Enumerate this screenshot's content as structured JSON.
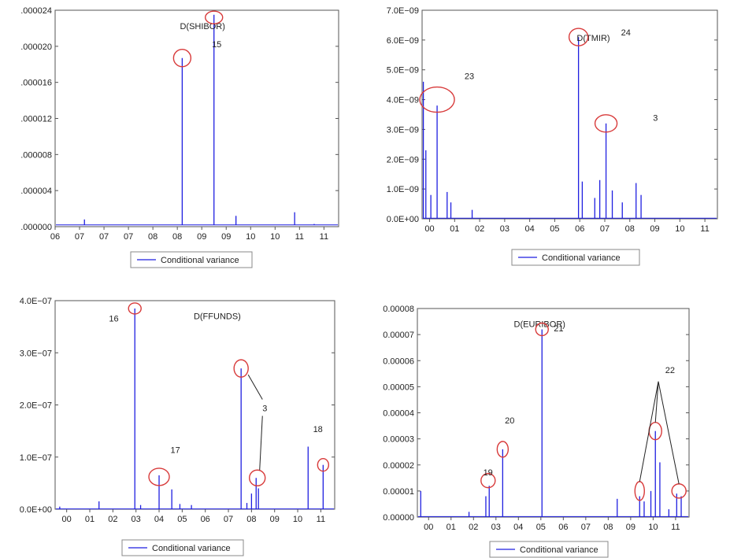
{
  "chart_data": [
    {
      "type": "line",
      "title": "D(SHIBOR)",
      "ylim": [
        0,
        2.4e-05
      ],
      "y_ticks": [
        ".000000",
        ".000004",
        ".000008",
        ".000012",
        ".000016",
        ".000020",
        ".000024"
      ],
      "y_tick_values": [
        0,
        4e-06,
        8e-06,
        1.2e-05,
        1.6e-05,
        2e-05,
        2.4e-05
      ],
      "x_range": [
        2006.0,
        2011.8
      ],
      "x_ticks": [
        "06",
        "07",
        "07",
        "07",
        "08",
        "08",
        "09",
        "09",
        "10",
        "10",
        "11",
        "11"
      ],
      "x_tick_positions": [
        2006.0,
        2006.5,
        2007.0,
        2007.5,
        2008.0,
        2008.5,
        2009.0,
        2009.5,
        2010.0,
        2010.5,
        2011.0,
        2011.5
      ],
      "baseline": 2e-07,
      "series": [
        {
          "name": "Conditional variance",
          "spikes": [
            {
              "x": 2006.6,
              "y": 8e-07
            },
            {
              "x": 2008.6,
              "y": 1.87e-05
            },
            {
              "x": 2009.25,
              "y": 2.35e-05
            },
            {
              "x": 2009.7,
              "y": 1.2e-06
            },
            {
              "x": 2010.9,
              "y": 1.6e-06
            },
            {
              "x": 2011.3,
              "y": 3e-07
            }
          ]
        }
      ],
      "annotations": [
        {
          "label": "15",
          "x": 2008.6,
          "y": 1.87e-05
        },
        {
          "label": "",
          "x": 2009.25,
          "y": 2.35e-05
        }
      ],
      "legend_entries": [
        "Conditional variance"
      ]
    },
    {
      "type": "line",
      "title": "D(TMIR)",
      "ylim": [
        0,
        7e-09
      ],
      "y_ticks": [
        "0.0E+00",
        "1.0E−09",
        "2.0E−09",
        "3.0E−09",
        "4.0E−09",
        "5.0E−09",
        "6.0E−09",
        "7.0E−09"
      ],
      "y_tick_values": [
        0,
        1e-09,
        2e-09,
        3e-09,
        4e-09,
        5e-09,
        6e-09,
        7e-09
      ],
      "x_range": [
        1999.7,
        2011.5
      ],
      "x_ticks": [
        "00",
        "01",
        "02",
        "03",
        "04",
        "05",
        "06",
        "07",
        "08",
        "09",
        "10",
        "11"
      ],
      "x_tick_positions": [
        2000,
        2001,
        2002,
        2003,
        2004,
        2005,
        2006,
        2007,
        2008,
        2009,
        2010,
        2011
      ],
      "baseline": 2e-11,
      "series": [
        {
          "name": "Conditional variance",
          "spikes": [
            {
              "x": 1999.75,
              "y": 4.6e-09
            },
            {
              "x": 1999.85,
              "y": 2.3e-09
            },
            {
              "x": 2000.05,
              "y": 8e-10
            },
            {
              "x": 2000.3,
              "y": 3.8e-09
            },
            {
              "x": 2000.7,
              "y": 9e-10
            },
            {
              "x": 2000.85,
              "y": 5.5e-10
            },
            {
              "x": 2001.7,
              "y": 3e-10
            },
            {
              "x": 2005.95,
              "y": 6.1e-09
            },
            {
              "x": 2006.1,
              "y": 1.25e-09
            },
            {
              "x": 2006.6,
              "y": 7e-10
            },
            {
              "x": 2006.8,
              "y": 1.3e-09
            },
            {
              "x": 2007.05,
              "y": 3.2e-09
            },
            {
              "x": 2007.3,
              "y": 9.5e-10
            },
            {
              "x": 2007.7,
              "y": 5.5e-10
            },
            {
              "x": 2008.25,
              "y": 1.2e-09
            },
            {
              "x": 2008.45,
              "y": 8e-10
            }
          ]
        }
      ],
      "annotations": [
        {
          "label": "24",
          "x": 2005.95,
          "y": 6.1e-09
        },
        {
          "label": "23",
          "x": 2000.3,
          "y": 4e-09
        },
        {
          "label": "3",
          "x": 2007.05,
          "y": 3.2e-09
        }
      ],
      "legend_entries": [
        "Conditional variance"
      ]
    },
    {
      "type": "line",
      "title": "D(FFUNDS)",
      "ylim": [
        0,
        4e-07
      ],
      "y_ticks": [
        "0.0E+00",
        "1.0E−07",
        "2.0E−07",
        "3.0E−07",
        "4.0E−07"
      ],
      "y_tick_values": [
        0,
        1e-07,
        2e-07,
        3e-07,
        4e-07
      ],
      "x_range": [
        1999.5,
        2011.6
      ],
      "x_ticks": [
        "00",
        "01",
        "02",
        "03",
        "04",
        "05",
        "06",
        "07",
        "08",
        "09",
        "10",
        "11"
      ],
      "x_tick_positions": [
        2000,
        2001,
        2002,
        2003,
        2004,
        2005,
        2006,
        2007,
        2008,
        2009,
        2010,
        2011
      ],
      "baseline": 5e-10,
      "series": [
        {
          "name": "Conditional variance",
          "spikes": [
            {
              "x": 1999.7,
              "y": 5e-09
            },
            {
              "x": 2001.4,
              "y": 1.5e-08
            },
            {
              "x": 2002.95,
              "y": 3.85e-07
            },
            {
              "x": 2003.2,
              "y": 8e-09
            },
            {
              "x": 2004.0,
              "y": 6.5e-08
            },
            {
              "x": 2004.55,
              "y": 3.8e-08
            },
            {
              "x": 2004.9,
              "y": 1e-08
            },
            {
              "x": 2005.4,
              "y": 8e-09
            },
            {
              "x": 2007.55,
              "y": 2.7e-07
            },
            {
              "x": 2007.8,
              "y": 1.2e-08
            },
            {
              "x": 2008.0,
              "y": 3e-08
            },
            {
              "x": 2008.2,
              "y": 6e-08
            },
            {
              "x": 2008.3,
              "y": 4e-08
            },
            {
              "x": 2010.45,
              "y": 1.2e-07
            },
            {
              "x": 2011.1,
              "y": 8.5e-08
            }
          ]
        }
      ],
      "annotations": [
        {
          "label": "16",
          "x": 2002.95,
          "y": 3.85e-07
        },
        {
          "label": "17",
          "x": 2004.0,
          "y": 6.5e-08
        },
        {
          "label": "3",
          "x": 2007.55,
          "y": 2.7e-07
        },
        {
          "label": "18",
          "x": 2011.1,
          "y": 8.5e-08
        }
      ],
      "legend_entries": [
        "Conditional variance"
      ]
    },
    {
      "type": "line",
      "title": "D(EURIBOR)",
      "ylim": [
        0,
        8e-05
      ],
      "y_ticks": [
        "0.00000",
        "0.00001",
        "0.00002",
        "0.00003",
        "0.00004",
        "0.00005",
        "0.00006",
        "0.00007",
        "0.00008"
      ],
      "y_tick_values": [
        0,
        1e-05,
        2e-05,
        3e-05,
        4e-05,
        5e-05,
        6e-05,
        7e-05,
        8e-05
      ],
      "x_range": [
        1999.5,
        2011.6
      ],
      "x_ticks": [
        "00",
        "01",
        "02",
        "03",
        "04",
        "05",
        "06",
        "07",
        "08",
        "09",
        "10",
        "11"
      ],
      "x_tick_positions": [
        2000,
        2001,
        2002,
        2003,
        2004,
        2005,
        2006,
        2007,
        2008,
        2009,
        2010,
        2011
      ],
      "baseline": 2e-07,
      "series": [
        {
          "name": "Conditional variance",
          "spikes": [
            {
              "x": 1999.65,
              "y": 1e-05
            },
            {
              "x": 2001.8,
              "y": 2e-06
            },
            {
              "x": 2002.55,
              "y": 8e-06
            },
            {
              "x": 2002.7,
              "y": 1.2e-05
            },
            {
              "x": 2003.3,
              "y": 2.6e-05
            },
            {
              "x": 2005.05,
              "y": 7.2e-05
            },
            {
              "x": 2008.4,
              "y": 7e-06
            },
            {
              "x": 2009.4,
              "y": 8e-06
            },
            {
              "x": 2009.6,
              "y": 6e-06
            },
            {
              "x": 2009.9,
              "y": 1e-05
            },
            {
              "x": 2010.1,
              "y": 3.3e-05
            },
            {
              "x": 2010.3,
              "y": 2.1e-05
            },
            {
              "x": 2010.7,
              "y": 3e-06
            },
            {
              "x": 2011.05,
              "y": 9e-06
            },
            {
              "x": 2011.25,
              "y": 8e-06
            }
          ]
        }
      ],
      "annotations": [
        {
          "label": "21",
          "x": 2005.05,
          "y": 7.2e-05
        },
        {
          "label": "20",
          "x": 2003.3,
          "y": 2.6e-05
        },
        {
          "label": "19",
          "x": 2002.7,
          "y": 1.3e-05
        },
        {
          "label": "22",
          "x": 2010.1,
          "y": 3.3e-05
        }
      ],
      "legend_entries": [
        "Conditional variance"
      ]
    }
  ]
}
